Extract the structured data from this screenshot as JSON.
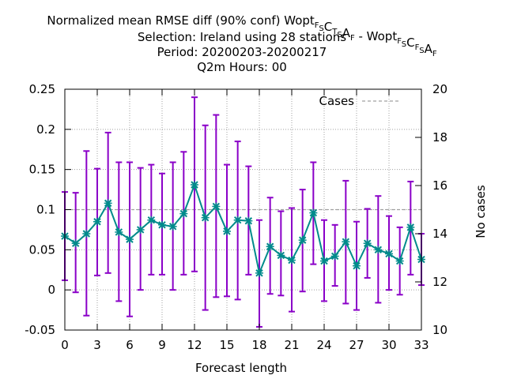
{
  "chart_data": {
    "type": "line",
    "title": {
      "line1_parts": [
        {
          "t": "Normalized mean RMSE diff (90% conf) Wopt",
          "sub": false
        },
        {
          "t": "F",
          "sub": true
        },
        {
          "t": "S",
          "sub": true
        },
        {
          "t": "C",
          "sub": false
        },
        {
          "t": "T",
          "sub": true
        },
        {
          "t": "S",
          "sub": true
        },
        {
          "t": "A",
          "sub": false
        },
        {
          "t": "F",
          "sub": true
        },
        {
          "t": " - Wopt",
          "sub": false
        },
        {
          "t": "F",
          "sub": true
        },
        {
          "t": "S",
          "sub": true
        },
        {
          "t": "C",
          "sub": false
        },
        {
          "t": "F",
          "sub": true
        },
        {
          "t": "S",
          "sub": true
        },
        {
          "t": "A",
          "sub": false
        },
        {
          "t": "F",
          "sub": true
        }
      ],
      "line2": "Selection: Ireland using    28 stations",
      "line3": "Period: 20200203-20200217",
      "line4": "Q2m   Hours:  00"
    },
    "xlabel": "Forecast length",
    "ylabel_right": "No cases",
    "xlim": [
      0,
      33
    ],
    "ylim": [
      -0.05,
      0.25
    ],
    "y2lim": [
      10,
      20
    ],
    "xticks": [
      "0",
      "3",
      "6",
      "9",
      "12",
      "15",
      "18",
      "21",
      "24",
      "27",
      "30",
      "33"
    ],
    "yticks": [
      "-0.05",
      "0",
      "0.05",
      "0.1",
      "0.15",
      "0.2",
      "0.25"
    ],
    "y2ticks": [
      "10",
      "12",
      "14",
      "16",
      "18",
      "20"
    ],
    "grid": true,
    "legend": {
      "label": "Cases",
      "position": "top-right"
    },
    "series": [
      {
        "name": "",
        "color": "#008b8b",
        "x": [
          0,
          1,
          2,
          3,
          4,
          5,
          6,
          7,
          8,
          9,
          10,
          11,
          12,
          13,
          14,
          15,
          16,
          17,
          18,
          19,
          20,
          21,
          22,
          23,
          24,
          25,
          26,
          27,
          28,
          29,
          30,
          31,
          32,
          33
        ],
        "y": [
          0.067,
          0.058,
          0.07,
          0.085,
          0.108,
          0.072,
          0.063,
          0.075,
          0.087,
          0.081,
          0.079,
          0.095,
          0.131,
          0.09,
          0.104,
          0.073,
          0.087,
          0.086,
          0.021,
          0.054,
          0.043,
          0.037,
          0.062,
          0.096,
          0.036,
          0.042,
          0.06,
          0.03,
          0.058,
          0.05,
          0.045,
          0.036,
          0.078,
          0.038
        ],
        "err_low": [
          0.012,
          -0.003,
          -0.032,
          0.018,
          0.021,
          -0.014,
          -0.033,
          0.0,
          0.019,
          0.019,
          0.0,
          0.019,
          0.023,
          -0.025,
          -0.009,
          -0.008,
          -0.012,
          0.019,
          -0.046,
          -0.005,
          -0.007,
          -0.027,
          -0.002,
          0.032,
          -0.014,
          0.005,
          -0.017,
          -0.025,
          0.015,
          -0.016,
          0.0,
          -0.006,
          0.019,
          0.006
        ],
        "err_high": [
          0.122,
          0.121,
          0.173,
          0.151,
          0.196,
          0.159,
          0.159,
          0.152,
          0.156,
          0.145,
          0.159,
          0.172,
          0.24,
          0.205,
          0.218,
          0.156,
          0.185,
          0.154,
          0.087,
          0.115,
          0.098,
          0.102,
          0.125,
          0.159,
          0.087,
          0.081,
          0.136,
          0.085,
          0.101,
          0.117,
          0.092,
          0.078,
          0.135,
          0.07
        ]
      }
    ],
    "cases": {
      "name": "Cases",
      "value": 15,
      "color": "#a0a0a0"
    },
    "errorbar_color": "#8a00c8"
  }
}
